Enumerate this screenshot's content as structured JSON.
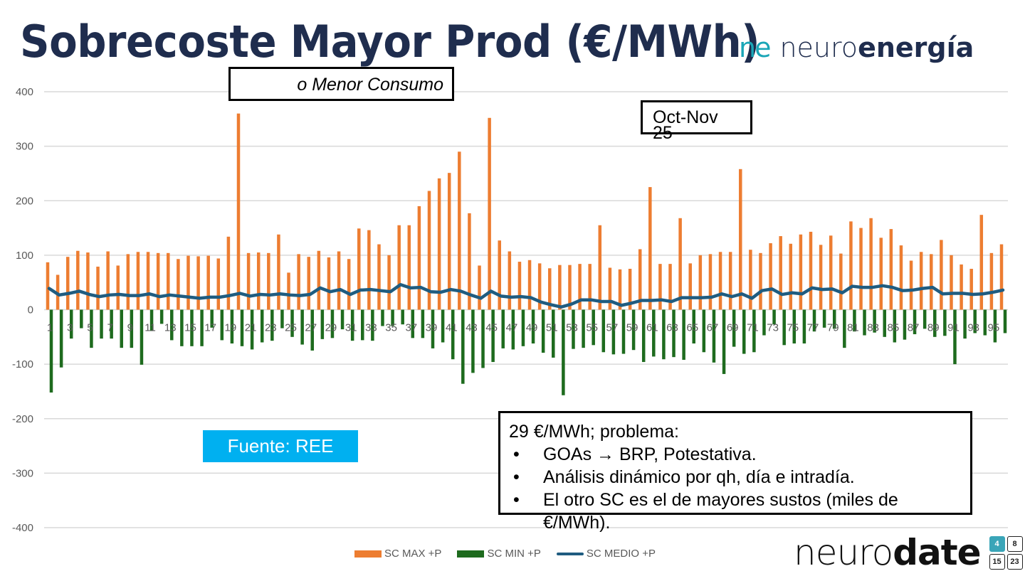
{
  "slide": {
    "title": "Sobrecoste Mayor Prod (€/MWh)",
    "brand_top": {
      "mark": "ne",
      "light": "neuro",
      "bold": "energía"
    },
    "brand_bottom": {
      "light": "neuro",
      "bold": "date",
      "calendar": [
        "4",
        "8",
        "15",
        "23"
      ]
    },
    "callout_consumo": "o Menor Consumo",
    "callout_period": "Oct-Nov 25",
    "source_label": "Fuente: REE",
    "note": {
      "head": "29 €/MWh; problema:",
      "bullets": [
        "GOAs → BRP, Potestativa.",
        "Análisis dinámico por qh, día e intradía.",
        "El otro SC es el de mayores sustos (miles de €/MWh)."
      ]
    }
  },
  "chart_data": {
    "type": "bar",
    "title": "Sobrecoste Mayor Prod (€/MWh)",
    "xlabel": "",
    "ylabel": "",
    "ylim": [
      -400,
      400
    ],
    "yticks": [
      400,
      300,
      200,
      100,
      0,
      -100,
      -200,
      -300,
      -400
    ],
    "grid": true,
    "legend_position": "bottom",
    "colors": {
      "max": "#ed7d31",
      "min": "#1e6b1e",
      "medio": "#1f5c80",
      "grid": "#d9d9d9",
      "axis_text": "#595959"
    },
    "categories": [
      1,
      2,
      3,
      4,
      5,
      6,
      7,
      8,
      9,
      10,
      11,
      12,
      13,
      14,
      15,
      16,
      17,
      18,
      19,
      20,
      21,
      22,
      23,
      24,
      25,
      26,
      27,
      28,
      29,
      30,
      31,
      32,
      33,
      34,
      35,
      36,
      37,
      38,
      39,
      40,
      41,
      42,
      43,
      44,
      45,
      46,
      47,
      48,
      49,
      50,
      51,
      52,
      53,
      54,
      55,
      56,
      57,
      58,
      59,
      60,
      61,
      62,
      63,
      64,
      65,
      66,
      67,
      68,
      69,
      70,
      71,
      72,
      73,
      74,
      75,
      76,
      77,
      78,
      79,
      80,
      81,
      82,
      83,
      84,
      85,
      86,
      87,
      88,
      89,
      90,
      91,
      92,
      93,
      94,
      95,
      96
    ],
    "series": [
      {
        "name": "SC MAX +P",
        "type": "bar",
        "values": [
          87,
          64,
          97,
          108,
          105,
          79,
          107,
          81,
          102,
          106,
          106,
          104,
          104,
          93,
          99,
          98,
          99,
          94,
          134,
          360,
          104,
          105,
          104,
          138,
          68,
          102,
          97,
          108,
          96,
          107,
          93,
          149,
          146,
          120,
          100,
          155,
          155,
          190,
          218,
          241,
          251,
          290,
          177,
          81,
          352,
          127,
          107,
          88,
          91,
          85,
          76,
          82,
          82,
          84,
          84,
          155,
          77,
          74,
          75,
          111,
          225,
          84,
          84,
          168,
          85,
          100,
          102,
          106,
          106,
          258,
          110,
          104,
          122,
          135,
          121,
          138,
          143,
          119,
          136,
          103,
          162,
          150,
          168,
          132,
          148,
          118,
          90,
          106,
          102,
          128,
          100,
          83,
          75,
          174,
          104,
          120
        ]
      },
      {
        "name": "SC MIN +P",
        "type": "bar",
        "values": [
          -152,
          -106,
          -53,
          -34,
          -70,
          -53,
          -53,
          -70,
          -70,
          -101,
          -39,
          -26,
          -56,
          -67,
          -67,
          -67,
          -33,
          -56,
          -62,
          -67,
          -73,
          -60,
          -57,
          -34,
          -50,
          -64,
          -75,
          -54,
          -52,
          -36,
          -57,
          -56,
          -57,
          -30,
          -30,
          -27,
          -52,
          -52,
          -71,
          -60,
          -91,
          -136,
          -116,
          -107,
          -96,
          -71,
          -73,
          -67,
          -62,
          -79,
          -88,
          -157,
          -72,
          -70,
          -65,
          -78,
          -82,
          -81,
          -74,
          -96,
          -86,
          -91,
          -87,
          -92,
          -62,
          -78,
          -97,
          -118,
          -68,
          -81,
          -78,
          -47,
          -27,
          -65,
          -62,
          -62,
          -40,
          -33,
          -35,
          -70,
          -40,
          -47,
          -42,
          -50,
          -60,
          -55,
          -45,
          -35,
          -50,
          -48,
          -100,
          -53,
          -43,
          -47,
          -60,
          -43
        ]
      },
      {
        "name": "SC MEDIO +P",
        "type": "line",
        "values": [
          39,
          27,
          30,
          34,
          28,
          24,
          27,
          28,
          26,
          26,
          29,
          24,
          27,
          25,
          23,
          21,
          23,
          23,
          26,
          30,
          25,
          28,
          27,
          29,
          27,
          26,
          28,
          40,
          33,
          37,
          28,
          36,
          37,
          35,
          33,
          46,
          40,
          41,
          33,
          32,
          37,
          34,
          27,
          21,
          34,
          25,
          23,
          24,
          22,
          14,
          9,
          5,
          10,
          18,
          18,
          15,
          15,
          8,
          12,
          17,
          17,
          18,
          15,
          22,
          22,
          22,
          23,
          29,
          24,
          29,
          21,
          35,
          38,
          28,
          31,
          29,
          40,
          37,
          38,
          31,
          43,
          41,
          41,
          44,
          41,
          35,
          36,
          39,
          41,
          29,
          30,
          30,
          28,
          29,
          32,
          36
        ]
      }
    ]
  }
}
